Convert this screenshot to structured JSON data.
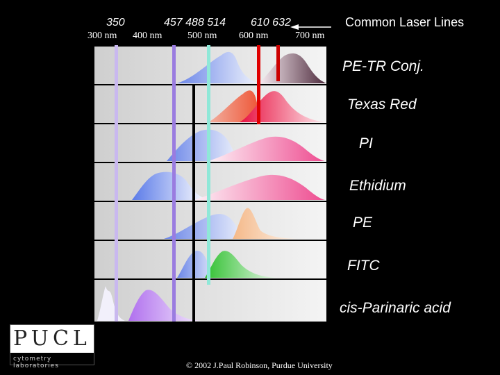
{
  "laser_values": [
    "350",
    "457 488  514",
    "610  632"
  ],
  "wavelength_ticks": [
    "300 nm",
    "400 nm",
    "500 nm",
    "600 nm",
    "700 nm"
  ],
  "legend_title": "Common Laser Lines",
  "dyes": [
    "PE-TR Conj.",
    "Texas Red",
    "PI",
    "Ethidium",
    "PE",
    "FITC",
    "cis-Parinaric acid"
  ],
  "copyright": "© 2002 J.Paul Robinson, Purdue University",
  "logo": {
    "text": "PUCL",
    "subtitle": "cytometry laboratories"
  },
  "colors": {
    "laser_350": "#c9b8ef",
    "laser_457": "#9a7ce0",
    "laser_488": "#8fe8d8",
    "laser_514": "#000000",
    "laser_610": "#e00000",
    "laser_632": "#cc0000",
    "pe_tr": "#5a3545",
    "texas_red": "#e81040",
    "texas_red_excitation": "#ee5030",
    "pi": "#ee4c90",
    "ethidium": "#ee4c90",
    "ethidium_excitation": "#3a6ae6",
    "pe": "#f4b888",
    "fitc": "#30c030",
    "cis_parinaric": "#b070ee"
  }
}
